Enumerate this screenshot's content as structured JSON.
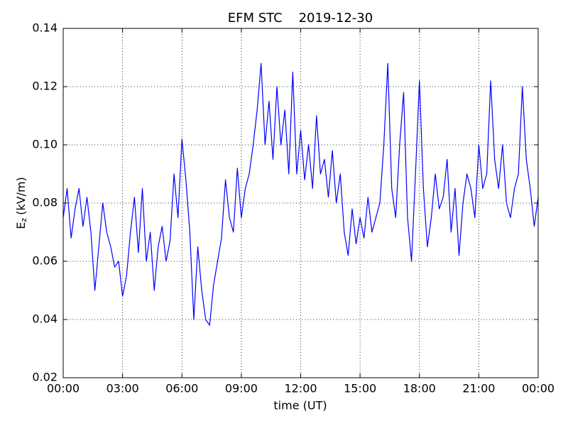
{
  "chart_data": {
    "type": "line",
    "title": "EFM STC    2019-12-30",
    "xlabel": "time (UT)",
    "ylabel": [
      "E",
      "z",
      "(kV/m)"
    ],
    "xlim": [
      0,
      24
    ],
    "ylim": [
      0.02,
      0.14
    ],
    "xticks": [
      {
        "value": 0,
        "label": "00:00"
      },
      {
        "value": 3,
        "label": "03:00"
      },
      {
        "value": 6,
        "label": "06:00"
      },
      {
        "value": 9,
        "label": "09:00"
      },
      {
        "value": 12,
        "label": "12:00"
      },
      {
        "value": 15,
        "label": "15:00"
      },
      {
        "value": 18,
        "label": "18:00"
      },
      {
        "value": 21,
        "label": "21:00"
      },
      {
        "value": 24,
        "label": "00:00"
      }
    ],
    "yticks": [
      0.02,
      0.04,
      0.06,
      0.08,
      {
        "value": 0.1,
        "label": "0.10"
      },
      0.12,
      0.14
    ],
    "grid": true,
    "x": [
      0,
      0.2,
      0.4,
      0.6,
      0.8,
      1,
      1.2,
      1.4,
      1.6,
      1.8,
      2,
      2.2,
      2.4,
      2.6,
      2.8,
      3,
      3.2,
      3.4,
      3.6,
      3.8,
      4,
      4.2,
      4.4,
      4.6,
      4.8,
      5,
      5.2,
      5.4,
      5.6,
      5.8,
      6,
      6.2,
      6.4,
      6.6,
      6.8,
      7,
      7.2,
      7.4,
      7.6,
      7.8,
      8,
      8.2,
      8.4,
      8.6,
      8.8,
      9,
      9.2,
      9.4,
      9.6,
      9.8,
      10,
      10.2,
      10.4,
      10.6,
      10.8,
      11,
      11.2,
      11.4,
      11.6,
      11.8,
      12,
      12.2,
      12.4,
      12.6,
      12.8,
      13,
      13.2,
      13.4,
      13.6,
      13.8,
      14,
      14.2,
      14.4,
      14.6,
      14.8,
      15,
      15.2,
      15.4,
      15.6,
      15.8,
      16,
      16.2,
      16.4,
      16.6,
      16.8,
      17,
      17.2,
      17.4,
      17.6,
      17.8,
      18,
      18.2,
      18.4,
      18.6,
      18.8,
      19,
      19.2,
      19.4,
      19.6,
      19.8,
      20,
      20.2,
      20.4,
      20.6,
      20.8,
      21,
      21.2,
      21.4,
      21.6,
      21.8,
      22,
      22.2,
      22.4,
      22.6,
      22.8,
      23,
      23.2,
      23.4,
      23.6,
      23.8,
      24
    ],
    "series": [
      {
        "color": "#0000ff",
        "values": [
          0.075,
          0.085,
          0.068,
          0.078,
          0.085,
          0.072,
          0.082,
          0.07,
          0.05,
          0.065,
          0.08,
          0.07,
          0.065,
          0.058,
          0.06,
          0.048,
          0.055,
          0.07,
          0.082,
          0.063,
          0.085,
          0.06,
          0.07,
          0.05,
          0.065,
          0.072,
          0.06,
          0.067,
          0.09,
          0.075,
          0.102,
          0.088,
          0.07,
          0.04,
          0.065,
          0.05,
          0.04,
          0.038,
          0.052,
          0.06,
          0.068,
          0.088,
          0.075,
          0.07,
          0.092,
          0.075,
          0.085,
          0.09,
          0.1,
          0.112,
          0.128,
          0.1,
          0.115,
          0.095,
          0.12,
          0.1,
          0.112,
          0.09,
          0.125,
          0.09,
          0.105,
          0.088,
          0.1,
          0.085,
          0.11,
          0.09,
          0.095,
          0.082,
          0.098,
          0.08,
          0.09,
          0.07,
          0.062,
          0.078,
          0.066,
          0.075,
          0.068,
          0.082,
          0.07,
          0.075,
          0.08,
          0.1,
          0.128,
          0.085,
          0.075,
          0.1,
          0.118,
          0.075,
          0.06,
          0.09,
          0.122,
          0.085,
          0.065,
          0.075,
          0.09,
          0.078,
          0.082,
          0.095,
          0.07,
          0.085,
          0.062,
          0.08,
          0.09,
          0.085,
          0.075,
          0.1,
          0.085,
          0.09,
          0.122,
          0.095,
          0.085,
          0.1,
          0.08,
          0.075,
          0.085,
          0.09,
          0.12,
          0.095,
          0.085,
          0.072,
          0.082
        ]
      }
    ]
  }
}
